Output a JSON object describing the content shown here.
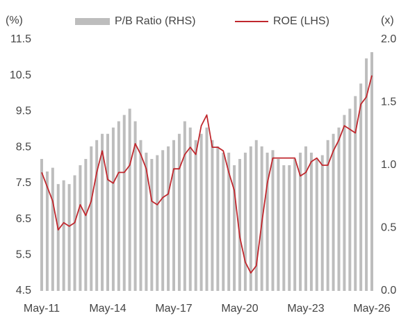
{
  "chart_data": {
    "type": "combo",
    "y_label": "(%)",
    "y2_label": "(x)",
    "categories": [
      "May-11",
      null,
      null,
      null,
      null,
      null,
      null,
      null,
      null,
      null,
      null,
      null,
      "May-14",
      null,
      null,
      null,
      null,
      null,
      null,
      null,
      null,
      null,
      null,
      null,
      "May-17",
      null,
      null,
      null,
      null,
      null,
      null,
      null,
      null,
      null,
      null,
      null,
      "May-20",
      null,
      null,
      null,
      null,
      null,
      null,
      null,
      null,
      null,
      null,
      null,
      "May-23",
      null,
      null,
      null,
      null,
      null,
      null,
      null,
      null,
      null,
      null,
      null,
      "May-26"
    ],
    "series": [
      {
        "name": "P/B Ratio (RHS)",
        "type": "bar",
        "axis": "y2",
        "color": "#bdbdbd",
        "values": [
          1.05,
          0.95,
          0.98,
          0.85,
          0.88,
          0.85,
          0.92,
          1.0,
          1.05,
          1.15,
          1.2,
          1.25,
          1.25,
          1.3,
          1.35,
          1.4,
          1.45,
          1.35,
          1.2,
          1.1,
          1.05,
          1.08,
          1.12,
          1.15,
          1.2,
          1.25,
          1.35,
          1.3,
          1.2,
          1.25,
          1.3,
          1.2,
          1.15,
          1.1,
          1.1,
          1.0,
          1.05,
          1.1,
          1.15,
          1.2,
          1.15,
          1.1,
          1.12,
          1.05,
          1.0,
          1.0,
          1.05,
          1.1,
          1.15,
          1.1,
          1.05,
          1.08,
          1.2,
          1.25,
          1.3,
          1.4,
          1.45,
          1.55,
          1.65,
          1.85,
          1.9
        ]
      },
      {
        "name": "ROE (LHS)",
        "type": "line",
        "color": "#c0272d",
        "values": [
          7.8,
          7.4,
          7.0,
          6.2,
          6.4,
          6.3,
          6.4,
          6.9,
          6.6,
          7.0,
          7.8,
          8.4,
          7.6,
          7.5,
          7.8,
          7.8,
          8.0,
          8.6,
          8.3,
          7.9,
          7.0,
          6.9,
          7.1,
          7.2,
          7.9,
          7.9,
          8.3,
          8.5,
          8.3,
          9.1,
          9.4,
          8.5,
          8.5,
          8.4,
          7.8,
          7.3,
          6.0,
          5.3,
          5.0,
          5.2,
          6.4,
          7.5,
          8.2,
          8.2,
          8.2,
          8.2,
          8.2,
          7.7,
          7.8,
          8.1,
          8.2,
          8.0,
          8.0,
          8.4,
          8.7,
          9.1,
          9.0,
          8.9,
          9.7,
          9.9,
          10.5
        ]
      }
    ],
    "ylim": [
      4.5,
      11.5
    ],
    "yticks": [
      4.5,
      5.5,
      6.5,
      7.5,
      8.5,
      9.5,
      10.5,
      11.5
    ],
    "y2lim": [
      0,
      2
    ],
    "y2ticks": [
      {
        "value": 0,
        "label": "0.0"
      },
      0.5,
      {
        "value": 1,
        "label": "1.0"
      },
      1.5,
      {
        "value": 2,
        "label": "2.0"
      }
    ]
  }
}
